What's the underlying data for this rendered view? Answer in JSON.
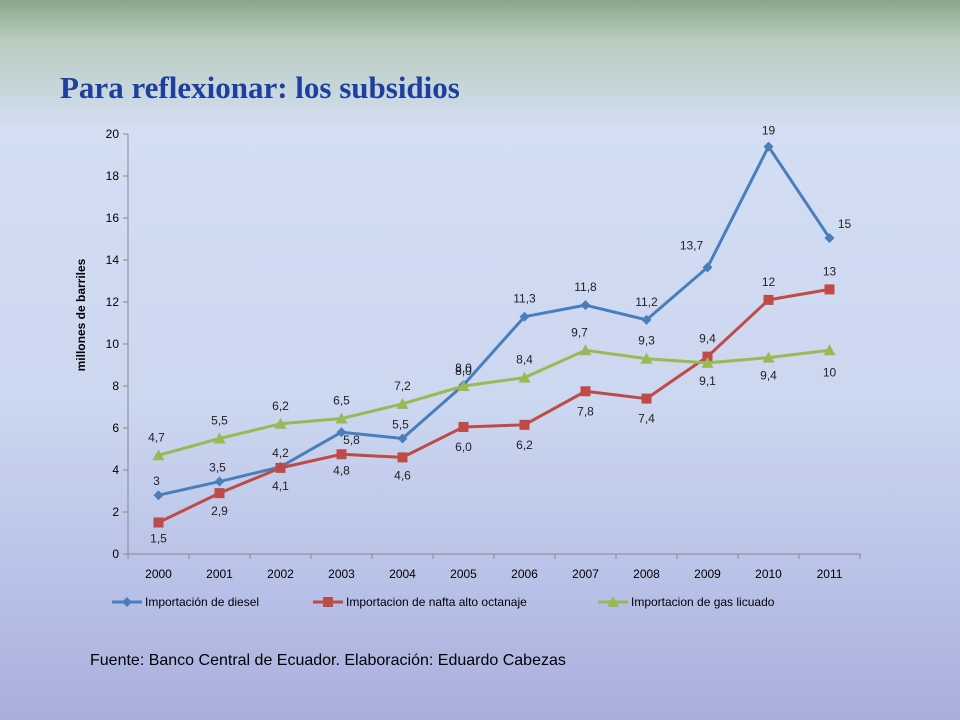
{
  "slide": {
    "title": "Para reflexionar: los subsidios",
    "source": "Fuente: Banco Central de Ecuador. Elaboración: Eduardo Cabezas"
  },
  "chart_data": {
    "type": "line",
    "title": "",
    "xlabel": "",
    "ylabel": "millones de barriles",
    "ylim": [
      0,
      20
    ],
    "yticks": [
      "0",
      "2",
      "4",
      "6",
      "8",
      "10",
      "12",
      "14",
      "16",
      "18",
      "20"
    ],
    "categories": [
      "2000",
      "2001",
      "2002",
      "2003",
      "2004",
      "2005",
      "2006",
      "2007",
      "2008",
      "2009",
      "2010",
      "2011"
    ],
    "grid": false,
    "legend_position": "bottom",
    "series": [
      {
        "name": "Importación de diesel",
        "color": "#4a7ebb",
        "marker": "diamond",
        "values": [
          2.8,
          3.45,
          4.15,
          5.8,
          5.5,
          8.05,
          11.3,
          11.85,
          11.15,
          13.65,
          19.4,
          15.05
        ],
        "labels": [
          "3",
          "3,5",
          "4,2",
          "5,8",
          "5,5",
          "8,0",
          "11,3",
          "11,8",
          "11,2",
          "13,7",
          "19",
          "15"
        ]
      },
      {
        "name": "Importacion de nafta alto octanaje",
        "color": "#be4b48",
        "marker": "square",
        "values": [
          1.5,
          2.9,
          4.1,
          4.75,
          4.6,
          6.05,
          6.15,
          7.75,
          7.4,
          9.4,
          12.1,
          12.6
        ],
        "labels": [
          "1,5",
          "2,9",
          "4,1",
          "4,8",
          "4,6",
          "6,0",
          "6,2",
          "7,8",
          "7,4",
          "9,4",
          "12",
          "13"
        ]
      },
      {
        "name": "Importacion de gas licuado",
        "color": "#98b954",
        "marker": "triangle",
        "values": [
          4.7,
          5.5,
          6.2,
          6.45,
          7.15,
          8.0,
          8.4,
          9.7,
          9.3,
          9.1,
          9.35,
          9.7
        ],
        "labels": [
          "4,7",
          "5,5",
          "6,2",
          "6,5",
          "7,2",
          "8,0",
          "8,4",
          "9,7",
          "9,3",
          "9,1",
          "9,4",
          "10"
        ]
      }
    ]
  }
}
